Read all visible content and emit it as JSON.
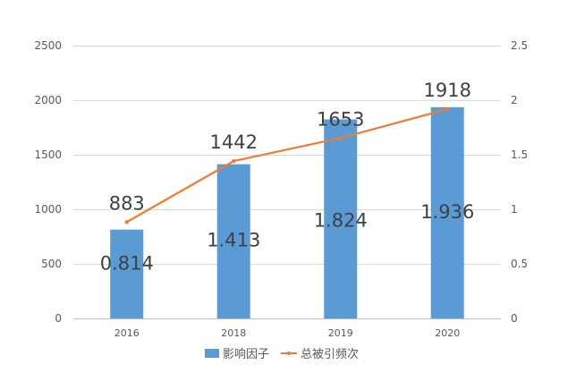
{
  "chart_data": {
    "type": "bar",
    "categories": [
      "2016",
      "2018",
      "2019",
      "2020"
    ],
    "series": [
      {
        "name": "影响因子",
        "type": "bar",
        "axis": "left",
        "color": "#5B9BD5",
        "values": [
          0.814,
          1.413,
          1.824,
          1.936
        ],
        "labels": [
          "0.814",
          "1.413",
          "1.824",
          "1.936"
        ]
      },
      {
        "name": "总被引频次",
        "type": "line",
        "axis": "left",
        "color": "#ED7D31",
        "values": [
          883,
          1442,
          1653,
          1918
        ],
        "labels": [
          "883",
          "1442",
          "1653",
          "1918"
        ]
      }
    ],
    "left_axis": {
      "ylim": [
        0,
        2500
      ],
      "ticks": [
        0,
        500,
        1000,
        1500,
        2000,
        2500
      ],
      "tick_labels": [
        "0",
        "500",
        "1000",
        "1500",
        "2000",
        "2500"
      ]
    },
    "right_axis": {
      "ylim": [
        0,
        2.5
      ],
      "ticks": [
        0,
        0.5,
        1,
        1.5,
        2,
        2.5
      ],
      "tick_labels": [
        "0",
        "0.5",
        "1",
        "1.5",
        "2",
        "2.5"
      ]
    },
    "grid": true,
    "legend": "bottom",
    "title": "",
    "xlabel": "",
    "ylabel": ""
  }
}
